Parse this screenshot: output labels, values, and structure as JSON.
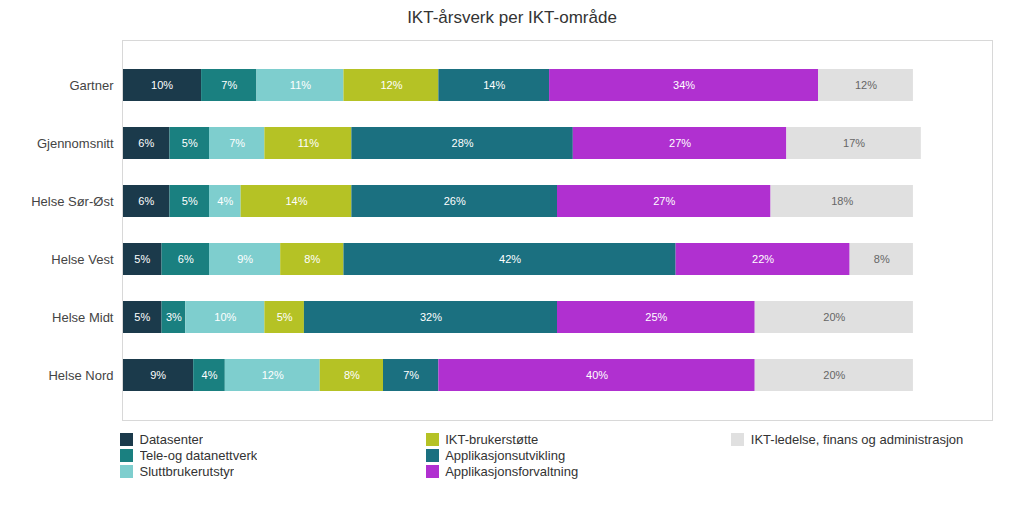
{
  "chart_data": {
    "type": "bar",
    "orientation": "horizontal",
    "stacked": true,
    "data_labels": true,
    "title": "IKT-årsverk per IKT-område",
    "categories": [
      "Gartner",
      "Gjennomsnitt",
      "Helse Sør-Øst",
      "Helse Vest",
      "Helse Midt",
      "Helse Nord"
    ],
    "series": [
      {
        "name": "Datasenter",
        "color": "#1b3a4b",
        "values": [
          10,
          6,
          6,
          5,
          5,
          9
        ],
        "value_labels": [
          "10%",
          "6%",
          "6%",
          "5%",
          "5%",
          "9%"
        ]
      },
      {
        "name": "Tele-og datanettverk",
        "color": "#1a8080",
        "values": [
          7,
          5,
          5,
          6,
          3,
          4
        ],
        "value_labels": [
          "7%",
          "5%",
          "5%",
          "6%",
          "3%",
          "4%"
        ]
      },
      {
        "name": "Sluttbrukerutstyr",
        "color": "#7ecece",
        "values": [
          11,
          7,
          4,
          9,
          10,
          12
        ],
        "value_labels": [
          "11%",
          "7%",
          "4%",
          "9%",
          "10%",
          "12%"
        ]
      },
      {
        "name": "IKT-brukerstøtte",
        "color": "#b5c225",
        "values": [
          12,
          11,
          14,
          8,
          5,
          8
        ],
        "value_labels": [
          "12%",
          "11%",
          "14%",
          "8%",
          "5%",
          "8%"
        ]
      },
      {
        "name": "Applikasjonsutvikling",
        "color": "#1b7080",
        "values": [
          14,
          28,
          26,
          42,
          32,
          7
        ],
        "value_labels": [
          "14%",
          "28%",
          "26%",
          "42%",
          "32%",
          "7%"
        ]
      },
      {
        "name": "Applikasjonsforvaltning",
        "color": "#b030d0",
        "values": [
          34,
          27,
          27,
          22,
          25,
          40
        ],
        "value_labels": [
          "34%",
          "27%",
          "27%",
          "22%",
          "25%",
          "40%"
        ]
      },
      {
        "name": "IKT-ledelse, finans og administrasjon",
        "color": "#e0e0e0",
        "values": [
          12,
          17,
          18,
          8,
          20,
          20
        ],
        "value_labels": [
          "12%",
          "17%",
          "18%",
          "8%",
          "20%",
          "20%"
        ]
      }
    ],
    "xlim": [
      0,
      110
    ],
    "tick_labels": "y",
    "grid": false,
    "legend": "bottom"
  }
}
